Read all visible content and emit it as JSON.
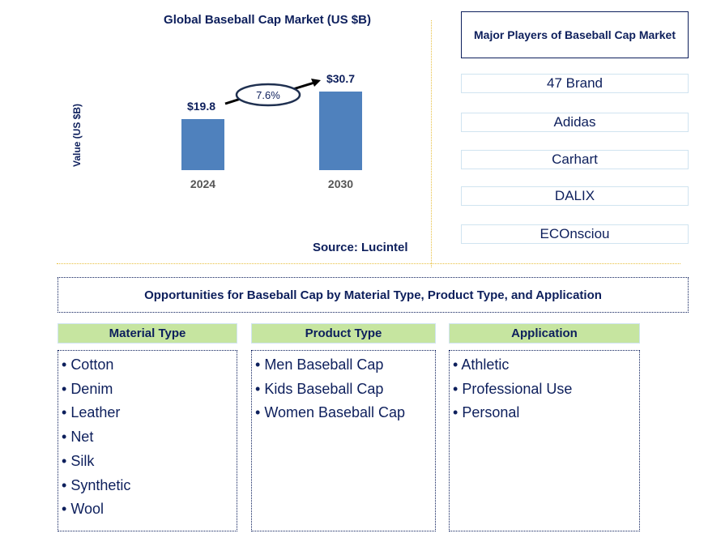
{
  "chart_data": {
    "type": "bar",
    "title": "Global Baseball Cap Market (US $B)",
    "ylabel": "Value (US $B)",
    "categories": [
      "2024",
      "2030"
    ],
    "values": [
      19.8,
      30.7
    ],
    "data_labels": [
      "$19.8",
      "$30.7"
    ],
    "growth_annotation": "7.6%",
    "bar_color": "#4f81bd",
    "source": "Source: Lucintel"
  },
  "players": {
    "title": "Major Players of Baseball Cap Market",
    "items": [
      "47 Brand",
      "Adidas",
      "Carhart",
      "DALIX",
      "ECOnsciou"
    ]
  },
  "opportunities": {
    "title": "Opportunities for Baseball Cap by Material Type, Product Type, and Application",
    "columns": [
      {
        "header": "Material Type",
        "items": [
          "Cotton",
          "Denim",
          "Leather",
          "Net",
          "Silk",
          "Synthetic",
          "Wool"
        ]
      },
      {
        "header": "Product Type",
        "items": [
          "Men Baseball Cap",
          "Kids Baseball Cap",
          "Women Baseball Cap"
        ]
      },
      {
        "header": "Application",
        "items": [
          "Athletic",
          "Professional Use",
          "Personal"
        ]
      }
    ]
  }
}
